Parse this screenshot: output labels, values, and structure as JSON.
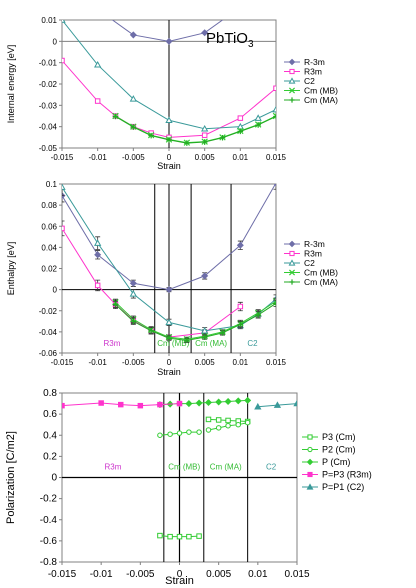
{
  "chart_data": [
    {
      "type": "line",
      "title": "PbTiO3",
      "title_main": "PbTiO",
      "title_sub": "3",
      "xlabel": "Strain",
      "ylabel": "Internal energy [eV]",
      "xlim": [
        -0.015,
        0.015
      ],
      "ylim": [
        -0.05,
        0.01
      ],
      "xticks": [
        -0.015,
        -0.01,
        -0.005,
        0,
        0.005,
        0.01,
        0.015
      ],
      "yticks": [
        -0.05,
        -0.04,
        -0.03,
        -0.02,
        -0.01,
        0,
        0.01
      ],
      "xtick_labels": [
        "-0.015",
        "-0.01",
        "-0.005",
        "0",
        "0.005",
        "0.01",
        "0.015"
      ],
      "ytick_labels": [
        "-0.05",
        "-0.04",
        "-0.03",
        "-0.02",
        "-0.01",
        "0",
        "0.01"
      ],
      "legend_position": "right",
      "series": [
        {
          "name": "R-3m",
          "color": "#6e6ea8",
          "marker": "diamond",
          "x": [
            -0.01,
            -0.005,
            0,
            0.005,
            0.01
          ],
          "y": [
            0.015,
            0.003,
            0.0,
            0.004,
            0.016
          ]
        },
        {
          "name": "R3m",
          "color": "#ff33cc",
          "marker": "square-open",
          "x": [
            -0.015,
            -0.01,
            -0.0075,
            -0.005,
            -0.0025,
            0,
            0.005,
            0.01,
            0.015
          ],
          "y": [
            -0.009,
            -0.028,
            -0.035,
            -0.04,
            -0.043,
            -0.045,
            -0.044,
            -0.036,
            -0.022
          ]
        },
        {
          "name": "C2",
          "color": "#3a9a9a",
          "marker": "triangle-open",
          "x": [
            -0.015,
            -0.01,
            -0.005,
            0,
            0.005,
            0.01,
            0.0125,
            0.015
          ],
          "y": [
            0.01,
            -0.011,
            -0.027,
            -0.037,
            -0.041,
            -0.04,
            -0.036,
            -0.032
          ]
        },
        {
          "name": "Cm (MB)",
          "color": "#33cc33",
          "marker": "x",
          "x": [
            -0.0075,
            -0.005,
            -0.0025,
            0,
            0.0025,
            0.005,
            0.0075,
            0.01,
            0.0125,
            0.015
          ],
          "y": [
            -0.035,
            -0.04,
            -0.044,
            -0.046,
            -0.0475,
            -0.047,
            -0.045,
            -0.042,
            -0.039,
            -0.035
          ]
        },
        {
          "name": "Cm (MA)",
          "color": "#22aa22",
          "marker": "plus",
          "x": [
            -0.0075,
            -0.005,
            -0.0025,
            0,
            0.0025,
            0.005,
            0.0075,
            0.01,
            0.0125,
            0.015
          ],
          "y": [
            -0.0352,
            -0.0402,
            -0.0442,
            -0.0462,
            -0.0477,
            -0.0472,
            -0.0452,
            -0.0422,
            -0.0392,
            -0.0352
          ]
        }
      ]
    },
    {
      "type": "line",
      "xlabel": "Strain",
      "ylabel": "Enthalpy [eV]",
      "xlim": [
        -0.015,
        0.015
      ],
      "ylim": [
        -0.06,
        0.1
      ],
      "xticks": [
        -0.015,
        -0.01,
        -0.005,
        0,
        0.005,
        0.01,
        0.015
      ],
      "yticks": [
        -0.06,
        -0.04,
        -0.02,
        0,
        0.02,
        0.04,
        0.06,
        0.08,
        0.1
      ],
      "xtick_labels": [
        "-0.015",
        "-0.01",
        "-0.005",
        "0",
        "0.005",
        "0.01",
        "0.015"
      ],
      "ytick_labels": [
        "-0.06",
        "-0.04",
        "-0.02",
        "0",
        "0.02",
        "0.04",
        "0.06",
        "0.08",
        "0.1"
      ],
      "legend_position": "right",
      "phase_boundaries": [
        -0.002,
        0.0031,
        0.0087
      ],
      "region_labels": [
        {
          "text": "R3m",
          "x": -0.008,
          "color": "#cc33cc"
        },
        {
          "text": "Cm (MB)",
          "x": 0.0006,
          "color": "#33bb33"
        },
        {
          "text": "Cm (MA)",
          "x": 0.0059,
          "color": "#33bb33"
        },
        {
          "text": "C2",
          "x": 0.0117,
          "color": "#3a9a9a"
        }
      ],
      "series": [
        {
          "name": "R-3m",
          "color": "#6e6ea8",
          "marker": "diamond",
          "x": [
            -0.015,
            -0.01,
            -0.005,
            0,
            0.005,
            0.01,
            0.015
          ],
          "y": [
            0.089,
            0.033,
            0.006,
            0.0,
            0.013,
            0.042,
            0.101
          ],
          "err": [
            0.006,
            0.004,
            0.003,
            0.002,
            0.003,
            0.004,
            0.006
          ]
        },
        {
          "name": "R3m",
          "color": "#ff33cc",
          "marker": "square-open",
          "x": [
            -0.015,
            -0.01,
            -0.0075,
            -0.005,
            -0.0025,
            0,
            0.005,
            0.01
          ],
          "y": [
            0.058,
            0.004,
            -0.014,
            -0.029,
            -0.039,
            -0.045,
            -0.041,
            -0.016
          ],
          "err": [
            0.007,
            0.005,
            0.004,
            0.003,
            0.003,
            0.002,
            0.003,
            0.004
          ]
        },
        {
          "name": "C2",
          "color": "#3a9a9a",
          "marker": "triangle-open",
          "x": [
            -0.015,
            -0.01,
            -0.005,
            0,
            0.005,
            0.01,
            0.0125,
            0.015
          ],
          "y": [
            0.097,
            0.044,
            -0.004,
            -0.031,
            -0.039,
            -0.034,
            -0.023,
            -0.009
          ],
          "err": [
            0.008,
            0.006,
            0.004,
            0.003,
            0.003,
            0.003,
            0.003,
            0.004
          ]
        },
        {
          "name": "Cm (MB)",
          "color": "#33cc33",
          "marker": "x",
          "x": [
            -0.0075,
            -0.005,
            -0.0025,
            0,
            0.0025,
            0.005,
            0.0075,
            0.01,
            0.0125,
            0.015
          ],
          "y": [
            -0.012,
            -0.028,
            -0.038,
            -0.045,
            -0.047,
            -0.044,
            -0.04,
            -0.032,
            -0.022,
            -0.011
          ],
          "err": [
            0.003,
            0.003,
            0.003,
            0.002,
            0.002,
            0.002,
            0.002,
            0.003,
            0.003,
            0.003
          ]
        },
        {
          "name": "Cm (MA)",
          "color": "#22aa22",
          "marker": "plus",
          "x": [
            -0.0075,
            -0.005,
            -0.0025,
            0,
            0.0025,
            0.005,
            0.0075,
            0.01,
            0.0125,
            0.015
          ],
          "y": [
            -0.014,
            -0.03,
            -0.039,
            -0.046,
            -0.048,
            -0.045,
            -0.041,
            -0.033,
            -0.024,
            -0.013
          ],
          "err": [
            0.003,
            0.003,
            0.003,
            0.002,
            0.002,
            0.002,
            0.002,
            0.003,
            0.003,
            0.003
          ]
        }
      ]
    },
    {
      "type": "line",
      "xlabel": "Strain",
      "ylabel": "Polarization [C/m2]",
      "xlim": [
        -0.015,
        0.015
      ],
      "ylim": [
        -0.8,
        0.8
      ],
      "xticks": [
        -0.015,
        -0.01,
        -0.005,
        0,
        0.005,
        0.01,
        0.015
      ],
      "yticks": [
        -0.8,
        -0.6,
        -0.4,
        -0.2,
        0,
        0.2,
        0.4,
        0.6,
        0.8
      ],
      "xtick_labels": [
        "-0.015",
        "-0.01",
        "-0.005",
        "0",
        "0.005",
        "0.01",
        "0.015"
      ],
      "ytick_labels": [
        "-0.8",
        "-0.6",
        "-0.4",
        "-0.2",
        "0",
        "0.2",
        "0.4",
        "0.6",
        "0.8"
      ],
      "legend_position": "right",
      "phase_boundaries": [
        -0.002,
        0.0031,
        0.0087
      ],
      "region_labels": [
        {
          "text": "R3m",
          "x": -0.0085,
          "color": "#cc33cc"
        },
        {
          "text": "Cm (MB)",
          "x": 0.0006,
          "color": "#33bb33"
        },
        {
          "text": "Cm (MA)",
          "x": 0.0059,
          "color": "#33bb33"
        },
        {
          "text": "C2",
          "x": 0.0117,
          "color": "#3a9a9a"
        }
      ],
      "series": [
        {
          "name": "P3 (Cm)",
          "color": "#33cc33",
          "marker": "square-open",
          "segments": [
            {
              "x": [
                -0.0025,
                -0.0012,
                0,
                0.0012,
                0.0025
              ],
              "y": [
                -0.55,
                -0.56,
                -0.56,
                -0.56,
                -0.555
              ]
            },
            {
              "x": [
                0.0037,
                0.005,
                0.0062,
                0.0075,
                0.0087
              ],
              "y": [
                0.55,
                0.545,
                0.54,
                0.535,
                0.53
              ]
            }
          ]
        },
        {
          "name": "P2 (Cm)",
          "color": "#33cc33",
          "marker": "circle-open",
          "segments": [
            {
              "x": [
                -0.0025,
                -0.0012,
                0,
                0.0012,
                0.0025
              ],
              "y": [
                0.4,
                0.41,
                0.42,
                0.43,
                0.43
              ]
            },
            {
              "x": [
                0.0037,
                0.005,
                0.0062,
                0.0075,
                0.0087
              ],
              "y": [
                0.45,
                0.47,
                0.49,
                0.5,
                0.52
              ]
            }
          ]
        },
        {
          "name": "P (Cm)",
          "color": "#33cc33",
          "marker": "diamond",
          "segments": [
            {
              "x": [
                -0.0025,
                -0.0012,
                0,
                0.0012,
                0.0025,
                0.0037,
                0.005,
                0.0062,
                0.0075,
                0.0087
              ],
              "y": [
                0.69,
                0.695,
                0.7,
                0.7,
                0.705,
                0.71,
                0.715,
                0.72,
                0.725,
                0.73
              ]
            }
          ]
        },
        {
          "name": "P=P3 (R3m)",
          "color": "#ff33cc",
          "marker": "square",
          "segments": [
            {
              "x": [
                -0.015,
                -0.01,
                -0.0075,
                -0.005,
                -0.0025,
                0
              ],
              "y": [
                0.68,
                0.705,
                0.69,
                0.68,
                0.69,
                0.7
              ]
            }
          ]
        },
        {
          "name": "P=P1 (C2)",
          "color": "#3a9a9a",
          "marker": "triangle",
          "segments": [
            {
              "x": [
                0.01,
                0.0125,
                0.015
              ],
              "y": [
                0.67,
                0.685,
                0.7
              ]
            }
          ]
        }
      ]
    }
  ]
}
